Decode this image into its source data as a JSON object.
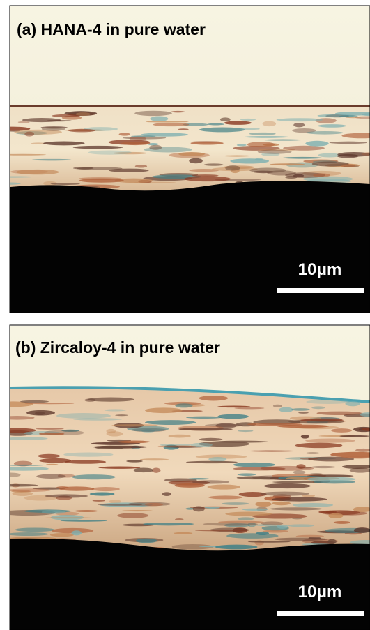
{
  "panels": [
    {
      "label": "(a) HANA-4 in pure water",
      "scale_bar": "10μm"
    },
    {
      "label": "(b) Zircaloy-4 in pure water",
      "scale_bar": "10μm"
    }
  ]
}
